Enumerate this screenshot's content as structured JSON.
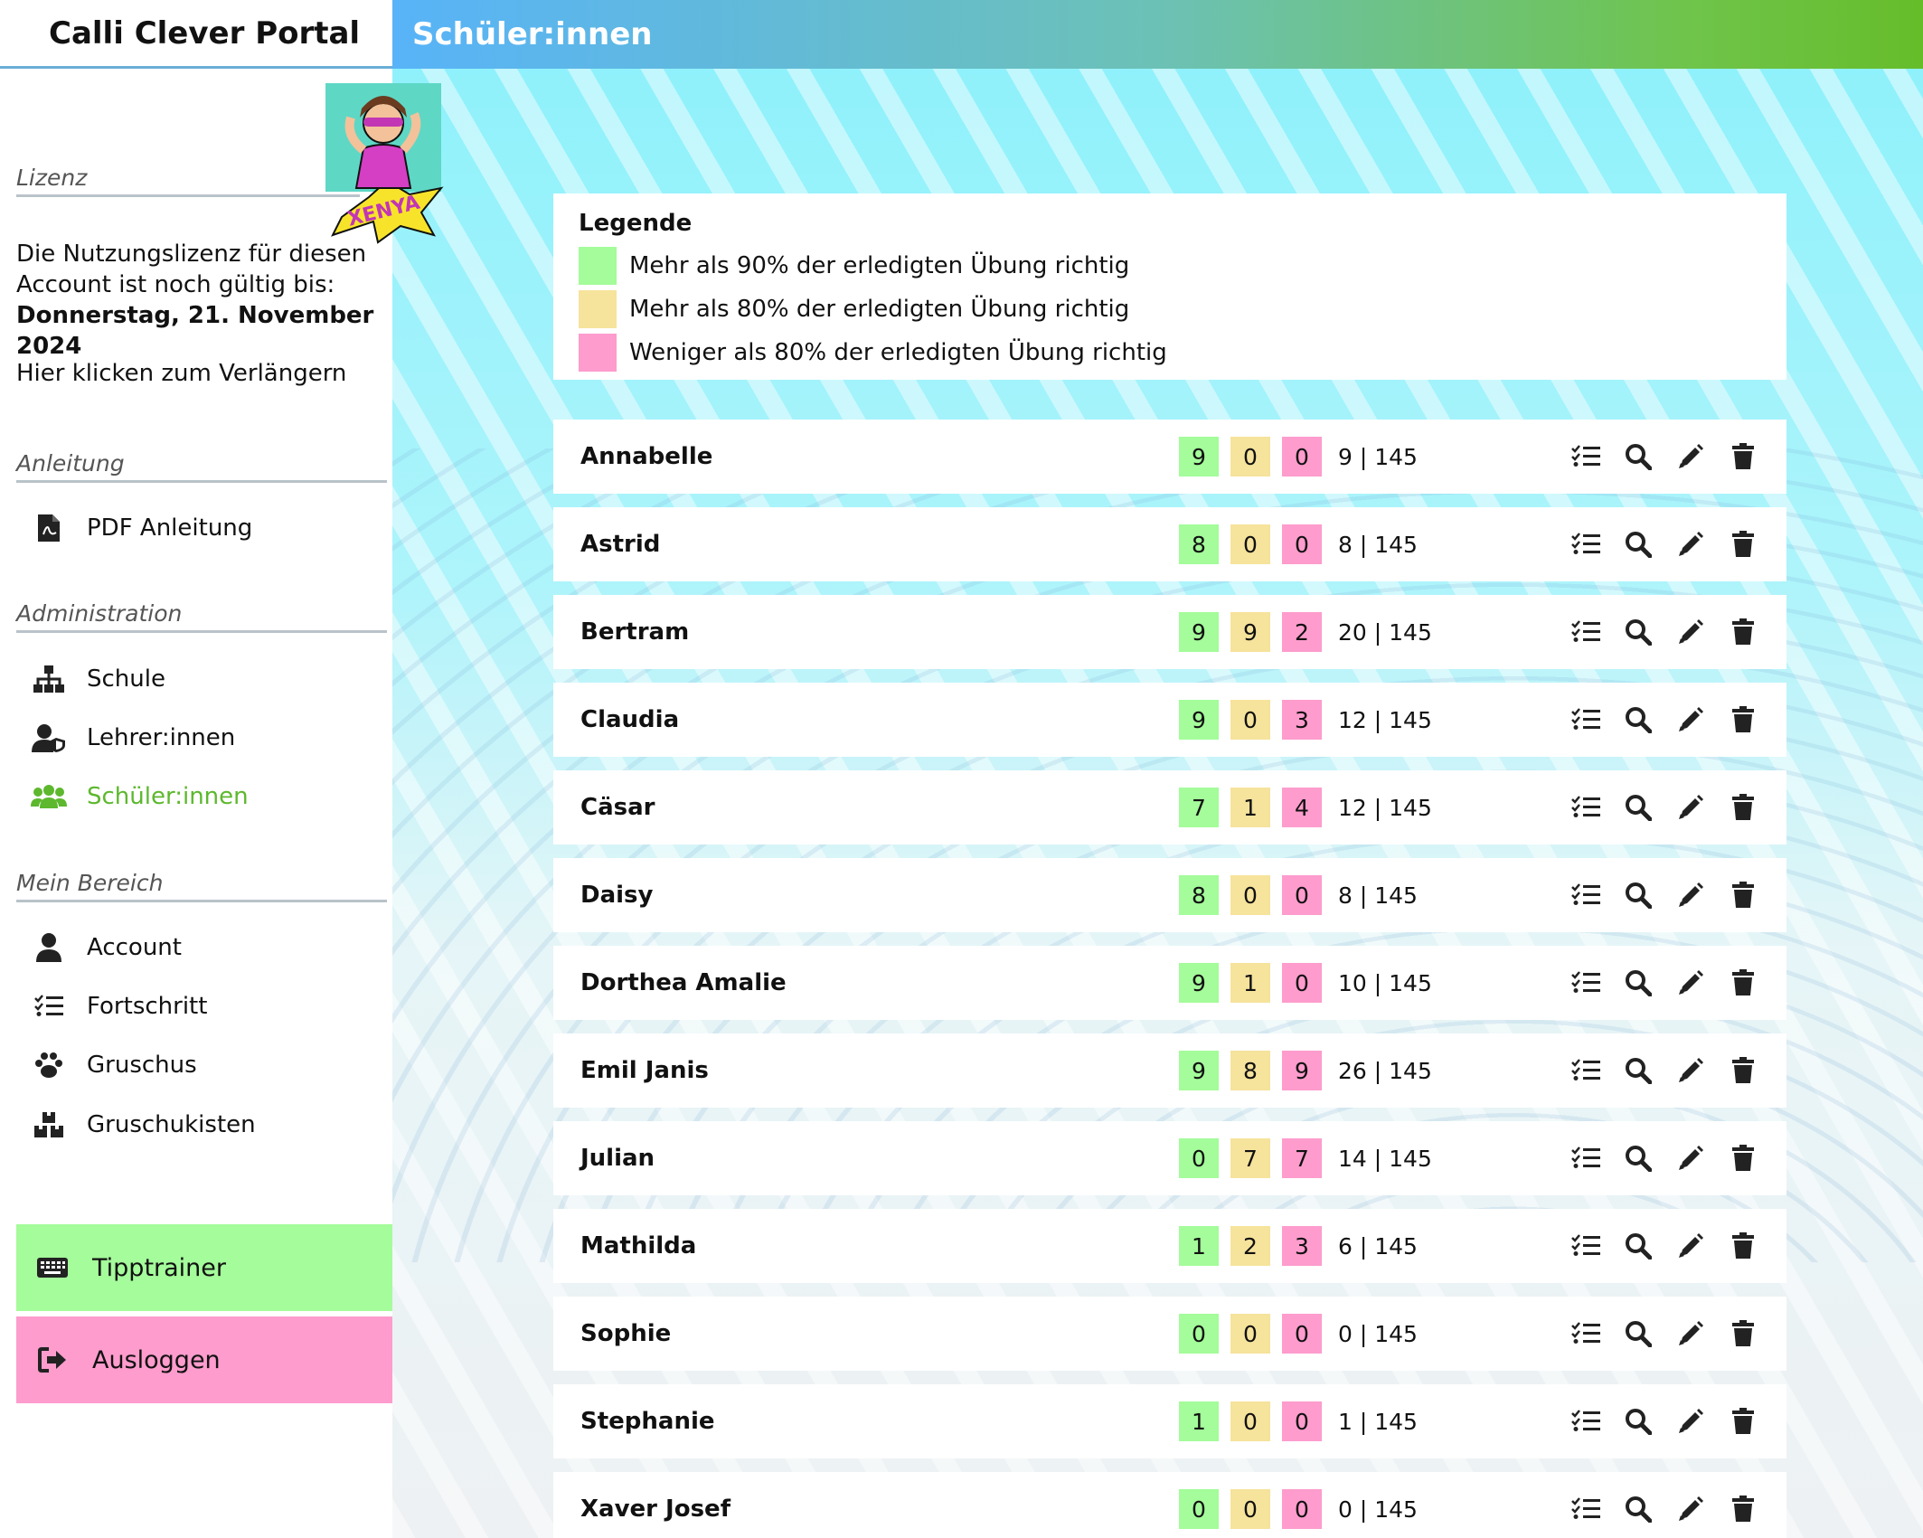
{
  "app": {
    "brand": "Calli Clever Portal",
    "page_title": "Schüler:innen"
  },
  "sidebar": {
    "license": {
      "title": "Lizenz",
      "line1": "Die Nutzungslizenz für diesen Account ist noch gültig bis:",
      "date": "Donnerstag, 21. November 2024",
      "extend": "Hier klicken zum Verlängern"
    },
    "guide": {
      "title": "Anleitung",
      "items": [
        {
          "label": "PDF Anleitung",
          "icon": "pdf-icon"
        }
      ]
    },
    "admin": {
      "title": "Administration",
      "items": [
        {
          "label": "Schule",
          "icon": "sitemap-icon"
        },
        {
          "label": "Lehrer:innen",
          "icon": "user-shield-icon"
        },
        {
          "label": "Schüler:innen",
          "icon": "users-icon",
          "active": true
        }
      ]
    },
    "mine": {
      "title": "Mein Bereich",
      "items": [
        {
          "label": "Account",
          "icon": "user-icon"
        },
        {
          "label": "Fortschritt",
          "icon": "list-check-icon"
        },
        {
          "label": "Gruschus",
          "icon": "paw-icon"
        },
        {
          "label": "Gruschukisten",
          "icon": "boxes-icon"
        }
      ]
    },
    "buttons": {
      "tipptrainer": "Tipptrainer",
      "logout": "Ausloggen"
    },
    "avatar_label": "XENYA"
  },
  "legend": {
    "title": "Legende",
    "items": [
      {
        "label": "Mehr als 90% der erledigten Übung richtig",
        "color": "#a4fc9a"
      },
      {
        "label": "Mehr als 80% der erledigten Übung richtig",
        "color": "#f6e39c"
      },
      {
        "label": "Weniger als 80% der erledigten Übung richtig",
        "color": "#fd9ccd"
      }
    ]
  },
  "colors": {
    "green": "#a4fc9a",
    "yellow": "#f6e39c",
    "pink": "#fd9ccd",
    "active_nav": "#5db82e"
  },
  "students": [
    {
      "name": "Annabelle",
      "green": "9",
      "yellow": "0",
      "pink": "0",
      "score": "9 | 145"
    },
    {
      "name": "Astrid",
      "green": "8",
      "yellow": "0",
      "pink": "0",
      "score": "8 | 145"
    },
    {
      "name": "Bertram",
      "green": "9",
      "yellow": "9",
      "pink": "2",
      "score": "20 | 145"
    },
    {
      "name": "Claudia",
      "green": "9",
      "yellow": "0",
      "pink": "3",
      "score": "12 | 145"
    },
    {
      "name": "Cäsar",
      "green": "7",
      "yellow": "1",
      "pink": "4",
      "score": "12 | 145"
    },
    {
      "name": "Daisy",
      "green": "8",
      "yellow": "0",
      "pink": "0",
      "score": "8 | 145"
    },
    {
      "name": "Dorthea Amalie",
      "green": "9",
      "yellow": "1",
      "pink": "0",
      "score": "10 | 145"
    },
    {
      "name": "Emil Janis",
      "green": "9",
      "yellow": "8",
      "pink": "9",
      "score": "26 | 145"
    },
    {
      "name": "Julian",
      "green": "0",
      "yellow": "7",
      "pink": "7",
      "score": "14 | 145"
    },
    {
      "name": "Mathilda",
      "green": "1",
      "yellow": "2",
      "pink": "3",
      "score": "6 | 145"
    },
    {
      "name": "Sophie",
      "green": "0",
      "yellow": "0",
      "pink": "0",
      "score": "0 | 145"
    },
    {
      "name": "Stephanie",
      "green": "1",
      "yellow": "0",
      "pink": "0",
      "score": "1 | 145"
    },
    {
      "name": "Xaver Josef",
      "green": "0",
      "yellow": "0",
      "pink": "0",
      "score": "0 | 145"
    }
  ]
}
